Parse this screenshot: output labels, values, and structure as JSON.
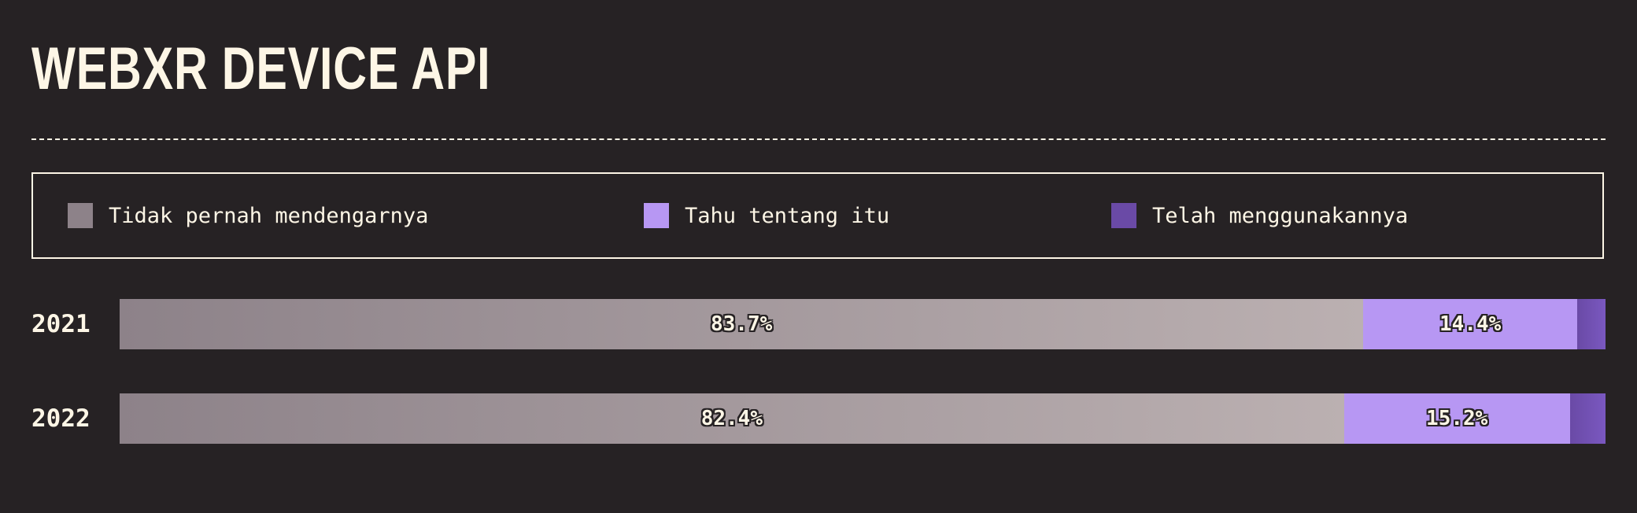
{
  "title": "WEBXR DEVICE API",
  "legend": [
    {
      "label": "Tidak pernah mendengarnya",
      "color": "#8d8289"
    },
    {
      "label": "Tahu tentang itu",
      "color": "#b797f3"
    },
    {
      "label": "Telah menggunakannya",
      "color": "#6a4aa6"
    }
  ],
  "chart_data": {
    "type": "bar",
    "orientation": "horizontal",
    "stacked": true,
    "percent": true,
    "categories": [
      "2021",
      "2022"
    ],
    "series": [
      {
        "name": "Tidak pernah mendengarnya",
        "values": [
          83.7,
          82.4
        ],
        "labels": [
          "83.7%",
          "82.4%"
        ]
      },
      {
        "name": "Tahu tentang itu",
        "values": [
          14.4,
          15.2
        ],
        "labels": [
          "14.4%",
          "15.2%"
        ]
      },
      {
        "name": "Telah menggunakannya",
        "values": [
          1.9,
          2.4
        ],
        "labels": [
          "",
          ""
        ]
      }
    ]
  }
}
